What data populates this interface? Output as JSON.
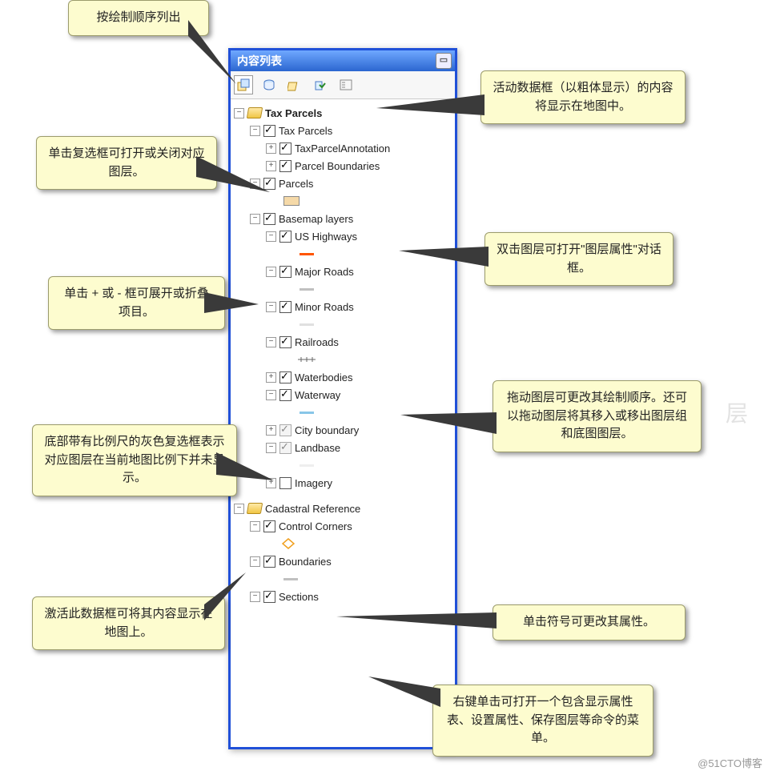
{
  "window_title": "内容列表",
  "toolbar": {
    "buttons": [
      "list-drawing-order",
      "list-source",
      "list-visibility",
      "list-selection",
      "options"
    ]
  },
  "frames": [
    {
      "name": "Tax Parcels",
      "active": true,
      "expand": "minus",
      "items": [
        {
          "l": 1,
          "exp": "minus",
          "cb": "on",
          "label": "Tax Parcels"
        },
        {
          "l": 2,
          "exp": "plus",
          "cb": "on",
          "label": "TaxParcelAnnotation"
        },
        {
          "l": 2,
          "exp": "plus",
          "cb": "on",
          "label": "Parcel Boundaries"
        },
        {
          "l": 1,
          "exp": "minus",
          "cb": "on",
          "label": "Parcels"
        },
        {
          "l": 2,
          "swatch": "#f5d9a8"
        },
        {
          "l": 1,
          "exp": "minus",
          "cb": "on",
          "label": "Basemap layers"
        },
        {
          "l": 2,
          "exp": "minus",
          "cb": "on",
          "label": "US Highways"
        },
        {
          "l": 3,
          "line": "#ff5500"
        },
        {
          "l": 2,
          "exp": "minus",
          "cb": "on",
          "label": "Major Roads"
        },
        {
          "l": 3,
          "line": "#c0c0c0"
        },
        {
          "l": 2,
          "exp": "minus",
          "cb": "on",
          "label": "Minor Roads"
        },
        {
          "l": 3,
          "line": "#e0e0e0"
        },
        {
          "l": 2,
          "exp": "minus",
          "cb": "on",
          "label": "Railroads"
        },
        {
          "l": 3,
          "rail": true
        },
        {
          "l": 2,
          "exp": "plus",
          "cb": "on",
          "label": "Waterbodies"
        },
        {
          "l": 2,
          "exp": "minus",
          "cb": "on",
          "label": "Waterway"
        },
        {
          "l": 3,
          "line": "#88c6e8"
        },
        {
          "l": 2,
          "exp": "plus",
          "cb": "grey",
          "label": "City boundary"
        },
        {
          "l": 2,
          "exp": "minus",
          "cb": "grey",
          "label": "Landbase"
        },
        {
          "l": 3,
          "line": "#eeeeee"
        },
        {
          "l": 2,
          "exp": "plus",
          "cb": "off",
          "label": "Imagery"
        }
      ]
    },
    {
      "name": "Cadastral Reference",
      "active": false,
      "expand": "minus",
      "items": [
        {
          "l": 1,
          "exp": "minus",
          "cb": "on",
          "label": "Control Corners"
        },
        {
          "l": 2,
          "sym": "diamond",
          "symcolor": "#f0a020"
        },
        {
          "l": 1,
          "exp": "minus",
          "cb": "on",
          "label": "Boundaries"
        },
        {
          "l": 2,
          "line": "#c0c0c0"
        },
        {
          "l": 1,
          "exp": "minus",
          "cb": "on",
          "label": "Sections"
        }
      ]
    }
  ],
  "callouts": {
    "c1": "按绘制顺序列出",
    "c2": "活动数据框（以粗体显示）的内容将显示在地图中。",
    "c3": "单击复选框可打开或关闭对应图层。",
    "c4": "双击图层可打开\"图层属性\"对话框。",
    "c5": "单击 + 或 - 框可展开或折叠项目。",
    "c6": "拖动图层可更改其绘制顺序。还可以拖动图层将其移入或移出图层组和底图图层。",
    "c7": "底部带有比例尺的灰色复选框表示对应图层在当前地图比例下并未显示。",
    "c8": "单击符号可更改其属性。",
    "c9": "激活此数据框可将其内容显示在地图上。",
    "c10": "右键单击可打开一个包含显示属性表、设置属性、保存图层等命令的菜单。"
  },
  "watermark": "@51CTO博客"
}
